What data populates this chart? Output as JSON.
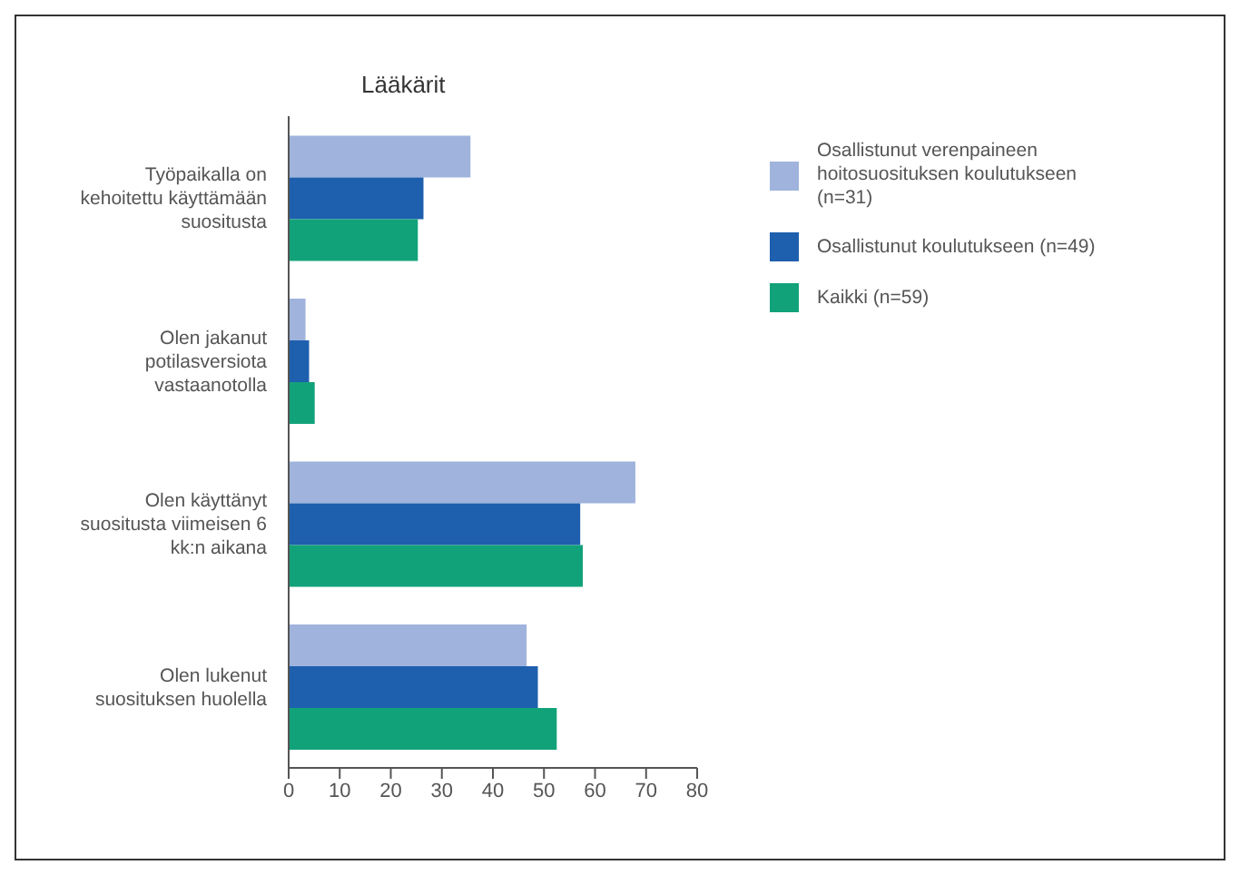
{
  "chart_data": {
    "type": "bar",
    "orientation": "horizontal",
    "title": "Lääkärit",
    "categories": [
      "Työpaikalla on kehoitettu käyttämään suositusta",
      "Olen jakanut potilasversiota vastaanotolla",
      "Olen käyttänyt suositusta viimeisen 6 kk:n aikana",
      "Olen lukenut suosituksen huolella"
    ],
    "series": [
      {
        "name": "Osallistunut verenpaineen hoitosuosituksen koulutukseen (n=31)",
        "color": "#9fb3dc",
        "values": [
          35.6,
          3.3,
          67.9,
          46.6
        ]
      },
      {
        "name": "Osallistunut koulutukseen (n=49)",
        "color": "#1e5fae",
        "values": [
          26.4,
          4.0,
          57.1,
          48.8
        ]
      },
      {
        "name": "Kaikki (n=59)",
        "color": "#12a27a",
        "values": [
          25.3,
          5.1,
          57.6,
          52.5
        ]
      }
    ],
    "xlim": [
      0,
      80
    ],
    "xticks": [
      0,
      10,
      20,
      30,
      40,
      50,
      60,
      70,
      80
    ],
    "grid": false,
    "legend": "top right"
  }
}
